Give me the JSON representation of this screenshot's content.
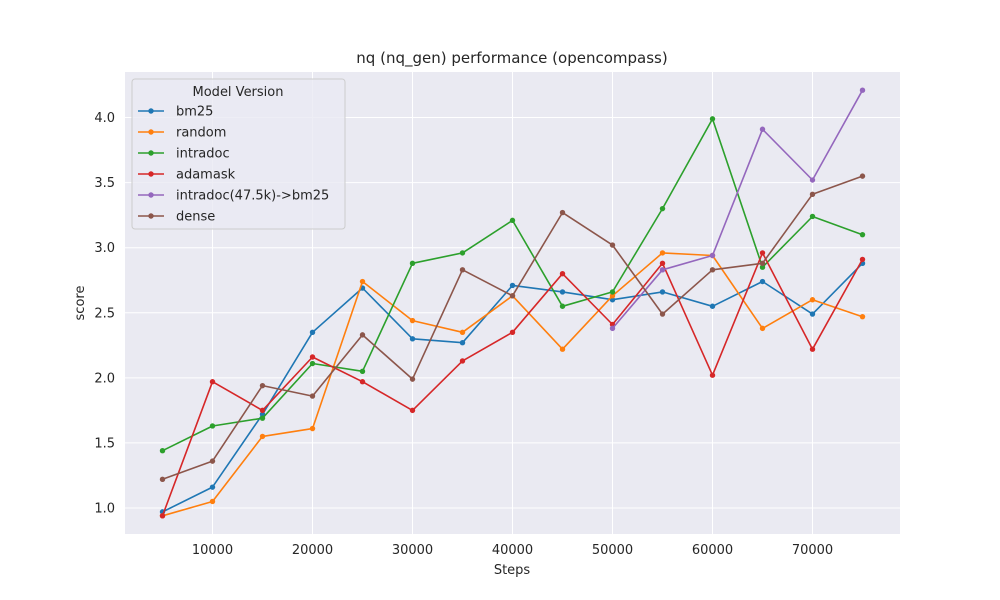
{
  "chart_data": {
    "type": "line",
    "title": "nq (nq_gen) performance (opencompass)",
    "xlabel": "Steps",
    "ylabel": "score",
    "xlim": [
      1250,
      78750
    ],
    "ylim": [
      0.8,
      4.35
    ],
    "xticks": [
      10000,
      20000,
      30000,
      40000,
      50000,
      60000,
      70000
    ],
    "yticks": [
      1.0,
      1.5,
      2.0,
      2.5,
      3.0,
      3.5,
      4.0
    ],
    "grid": true,
    "legend_title": "Model Version",
    "legend_position": "top-left",
    "series": [
      {
        "name": "bm25",
        "color": "#1f77b4",
        "x": [
          5000,
          10000,
          15000,
          20000,
          25000,
          30000,
          35000,
          40000,
          45000,
          50000,
          55000,
          60000,
          65000,
          70000,
          75000
        ],
        "y": [
          0.97,
          1.16,
          1.72,
          2.35,
          2.69,
          2.3,
          2.27,
          2.71,
          2.66,
          2.6,
          2.66,
          2.55,
          2.74,
          2.49,
          2.88
        ]
      },
      {
        "name": "random",
        "color": "#ff7f0e",
        "x": [
          5000,
          10000,
          15000,
          20000,
          25000,
          30000,
          35000,
          40000,
          45000,
          50000,
          55000,
          60000,
          65000,
          70000,
          75000
        ],
        "y": [
          0.94,
          1.05,
          1.55,
          1.61,
          2.74,
          2.44,
          2.35,
          2.63,
          2.22,
          2.63,
          2.96,
          2.94,
          2.38,
          2.6,
          2.47
        ]
      },
      {
        "name": "intradoc",
        "color": "#2ca02c",
        "x": [
          5000,
          10000,
          15000,
          20000,
          25000,
          30000,
          35000,
          40000,
          45000,
          50000,
          55000,
          60000,
          65000,
          70000,
          75000
        ],
        "y": [
          1.44,
          1.63,
          1.69,
          2.11,
          2.05,
          2.88,
          2.96,
          3.21,
          2.55,
          2.66,
          3.3,
          3.99,
          2.85,
          3.24,
          3.1
        ]
      },
      {
        "name": "adamask",
        "color": "#d62728",
        "x": [
          5000,
          10000,
          15000,
          20000,
          25000,
          30000,
          35000,
          40000,
          45000,
          50000,
          55000,
          60000,
          65000,
          70000,
          75000
        ],
        "y": [
          0.94,
          1.97,
          1.75,
          2.16,
          1.97,
          1.75,
          2.13,
          2.35,
          2.8,
          2.41,
          2.88,
          2.02,
          2.96,
          2.22,
          2.91
        ]
      },
      {
        "name": "intradoc(47.5k)->bm25",
        "color": "#9467bd",
        "x": [
          50000,
          55000,
          60000,
          65000,
          70000,
          75000
        ],
        "y": [
          2.38,
          2.83,
          2.94,
          3.91,
          3.52,
          4.21
        ]
      },
      {
        "name": "dense",
        "color": "#8c564b",
        "x": [
          5000,
          10000,
          15000,
          20000,
          25000,
          30000,
          35000,
          40000,
          45000,
          50000,
          55000,
          60000,
          65000,
          70000,
          75000
        ],
        "y": [
          1.22,
          1.36,
          1.94,
          1.86,
          2.33,
          1.99,
          2.83,
          2.63,
          3.27,
          3.02,
          2.49,
          2.83,
          2.88,
          3.41,
          3.55
        ]
      }
    ]
  }
}
